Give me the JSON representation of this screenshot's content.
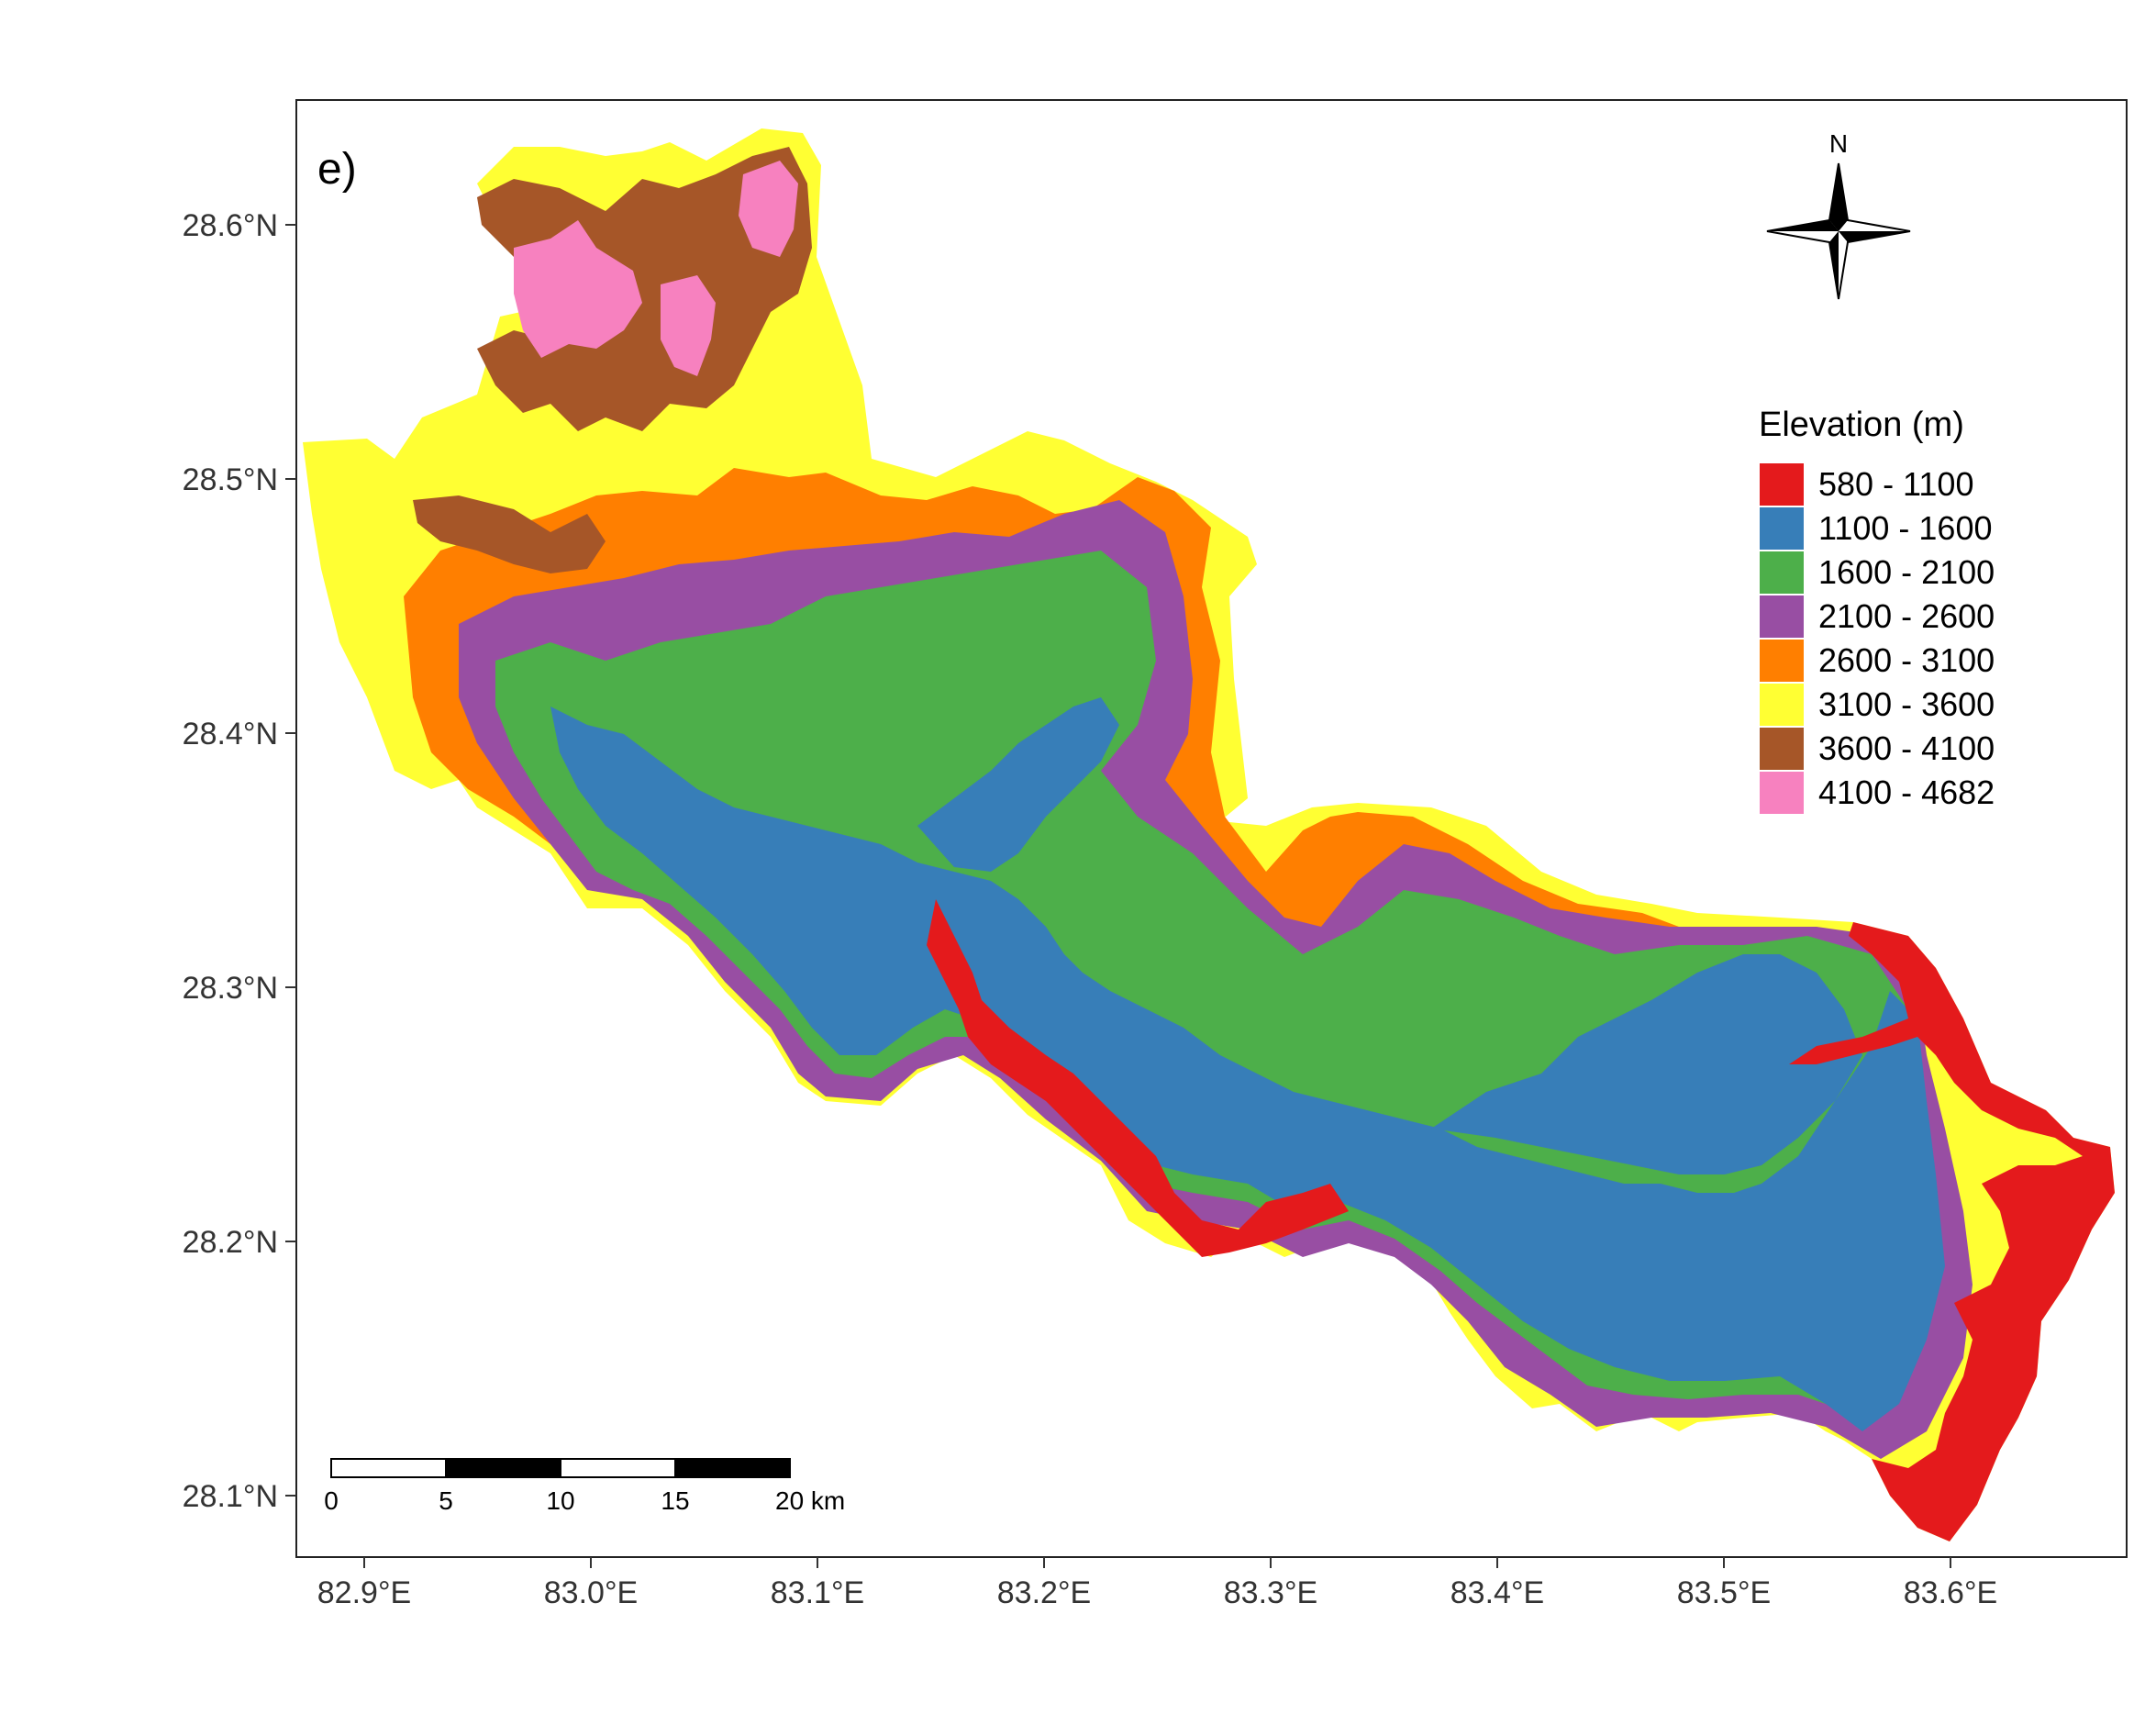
{
  "panel_label": "e)",
  "north_label": "N",
  "legend": {
    "title": "Elevation (m)",
    "classes": [
      {
        "label": "580 - 1100",
        "color": "#e41a1c"
      },
      {
        "label": "1100 - 1600",
        "color": "#377eb8"
      },
      {
        "label": "1600 - 2100",
        "color": "#4daf4a"
      },
      {
        "label": "2100 - 2600",
        "color": "#984ea3"
      },
      {
        "label": "2600 - 3100",
        "color": "#ff7f00"
      },
      {
        "label": "3100 - 3600",
        "color": "#ffff33"
      },
      {
        "label": "3600 - 4100",
        "color": "#a65628"
      },
      {
        "label": "4100 - 4682",
        "color": "#f781bf"
      }
    ]
  },
  "axes": {
    "x_ticks": [
      "82.9°E",
      "83.0°E",
      "83.1°E",
      "83.2°E",
      "83.3°E",
      "83.4°E",
      "83.5°E",
      "83.6°E"
    ],
    "y_ticks": [
      "28.6°N",
      "28.5°N",
      "28.4°N",
      "28.3°N",
      "28.2°N",
      "28.1°N"
    ]
  },
  "scale_bar": {
    "labels": [
      "0",
      "5",
      "10",
      "15",
      "20 km"
    ]
  }
}
